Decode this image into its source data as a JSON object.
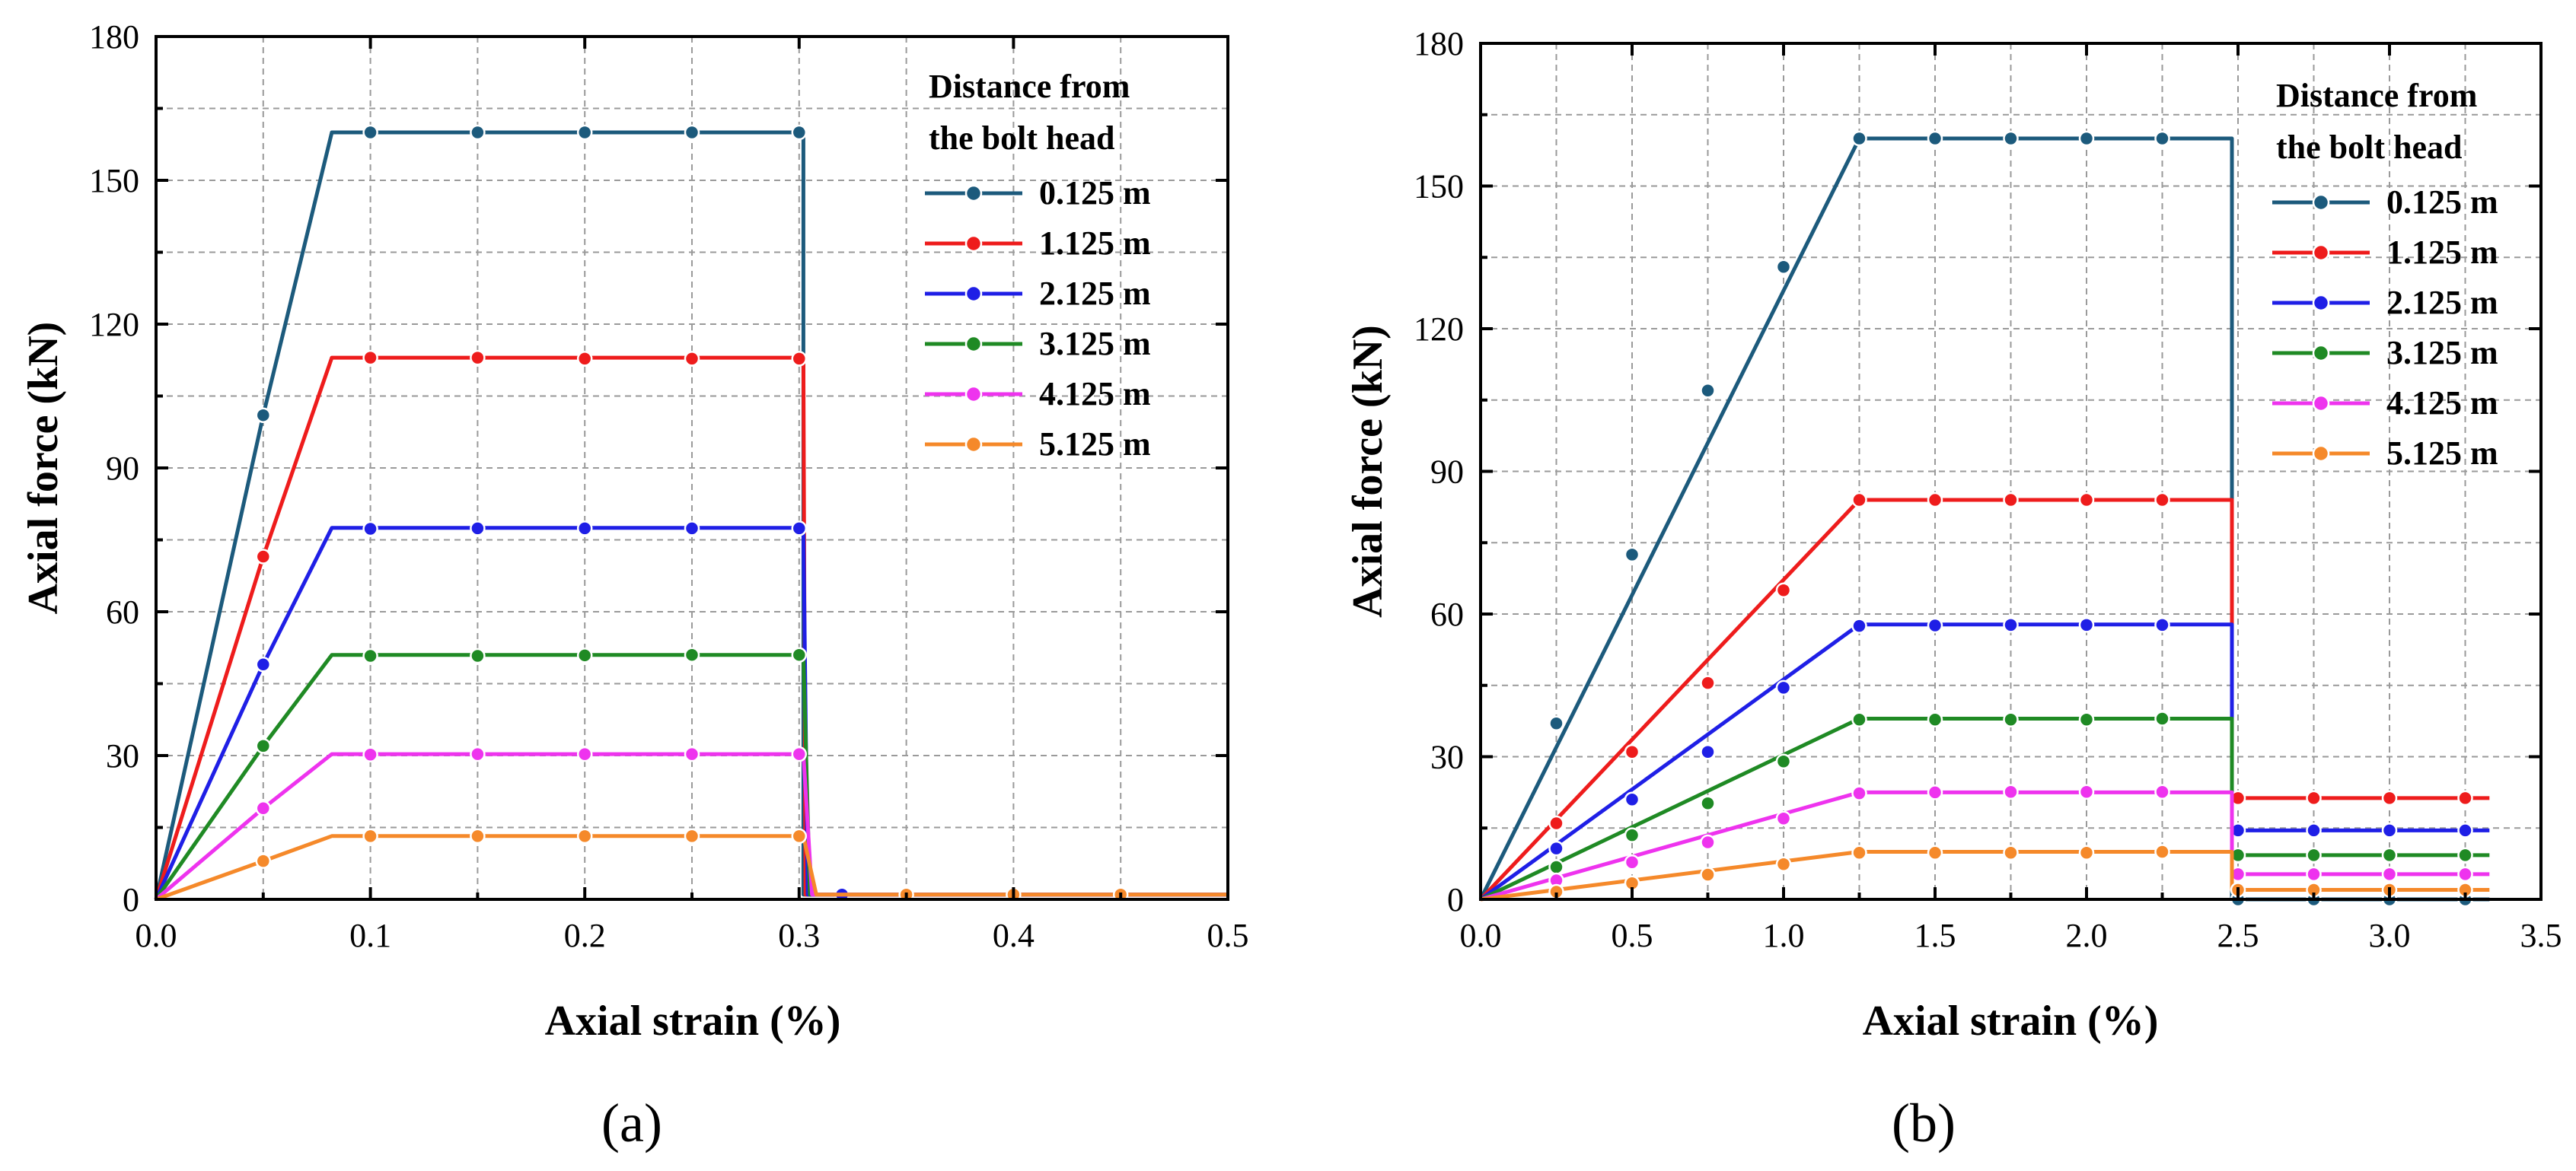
{
  "colors": {
    "s0": "#1c5a7c",
    "s1": "#ee1c1c",
    "s2": "#1f1fe6",
    "s3": "#1f8a24",
    "s4": "#ee33ee",
    "s5": "#f5892a"
  },
  "chart_data": [
    {
      "type": "line",
      "panel_label": "(a)",
      "xlabel": "Axial strain (%)",
      "ylabel": "Axial force (kN)",
      "xlim": [
        0,
        0.5
      ],
      "ylim": [
        0,
        180
      ],
      "xticks": [
        0.0,
        0.1,
        0.2,
        0.3,
        0.4,
        0.5
      ],
      "xtick_labels": [
        "0.0",
        "0.1",
        "0.2",
        "0.3",
        "0.4",
        "0.5"
      ],
      "yticks": [
        0,
        30,
        60,
        90,
        120,
        150,
        180
      ],
      "ytick_labels": [
        "0",
        "30",
        "60",
        "90",
        "120",
        "150",
        "180"
      ],
      "grid": true,
      "legend": {
        "title_line1": "Distance from",
        "title_line2": "the bolt head",
        "placement": "top-right"
      },
      "series": [
        {
          "name": "0.125 m",
          "line": [
            [
              0,
              0
            ],
            [
              0.05,
              101
            ],
            [
              0.082,
              160
            ],
            [
              0.302,
              160
            ],
            [
              0.302,
              1
            ],
            [
              0.5,
              1
            ]
          ],
          "markers": [
            [
              0.05,
              101
            ],
            [
              0.1,
              160
            ],
            [
              0.15,
              160
            ],
            [
              0.2,
              160
            ],
            [
              0.25,
              160
            ],
            [
              0.3,
              160
            ],
            [
              0.35,
              1
            ],
            [
              0.4,
              1
            ],
            [
              0.45,
              1
            ]
          ]
        },
        {
          "name": "1.125 m",
          "line": [
            [
              0,
              0
            ],
            [
              0.05,
              71.5
            ],
            [
              0.082,
              113
            ],
            [
              0.302,
              113
            ],
            [
              0.303,
              1
            ],
            [
              0.5,
              1
            ]
          ],
          "markers": [
            [
              0.05,
              71.5
            ],
            [
              0.1,
              113
            ],
            [
              0.15,
              113
            ],
            [
              0.2,
              112.8
            ],
            [
              0.25,
              112.8
            ],
            [
              0.3,
              112.8
            ],
            [
              0.35,
              1
            ],
            [
              0.4,
              1
            ],
            [
              0.45,
              1
            ]
          ]
        },
        {
          "name": "2.125 m",
          "line": [
            [
              0,
              0
            ],
            [
              0.05,
              49
            ],
            [
              0.082,
              77.5
            ],
            [
              0.302,
              77.5
            ],
            [
              0.304,
              1
            ],
            [
              0.5,
              1
            ]
          ],
          "markers": [
            [
              0.05,
              49
            ],
            [
              0.1,
              77.3
            ],
            [
              0.15,
              77.4
            ],
            [
              0.2,
              77.4
            ],
            [
              0.25,
              77.4
            ],
            [
              0.3,
              77.4
            ],
            [
              0.32,
              1
            ],
            [
              0.35,
              1
            ],
            [
              0.4,
              1
            ],
            [
              0.45,
              1
            ]
          ]
        },
        {
          "name": "3.125 m",
          "line": [
            [
              0,
              0
            ],
            [
              0.05,
              32
            ],
            [
              0.082,
              51
            ],
            [
              0.302,
              51
            ],
            [
              0.305,
              1
            ],
            [
              0.5,
              1
            ]
          ],
          "markers": [
            [
              0.05,
              32
            ],
            [
              0.1,
              50.8
            ],
            [
              0.15,
              50.8
            ],
            [
              0.2,
              50.9
            ],
            [
              0.25,
              51
            ],
            [
              0.3,
              51
            ],
            [
              0.35,
              1
            ],
            [
              0.4,
              1
            ],
            [
              0.45,
              1
            ]
          ]
        },
        {
          "name": "4.125 m",
          "line": [
            [
              0,
              0
            ],
            [
              0.05,
              19
            ],
            [
              0.082,
              30.3
            ],
            [
              0.302,
              30.3
            ],
            [
              0.306,
              1
            ],
            [
              0.5,
              1
            ]
          ],
          "markers": [
            [
              0.05,
              19
            ],
            [
              0.1,
              30.2
            ],
            [
              0.15,
              30.3
            ],
            [
              0.2,
              30.3
            ],
            [
              0.25,
              30.3
            ],
            [
              0.3,
              30.3
            ],
            [
              0.35,
              1
            ],
            [
              0.4,
              1
            ],
            [
              0.45,
              1
            ]
          ]
        },
        {
          "name": "5.125 m",
          "line": [
            [
              0,
              0
            ],
            [
              0.05,
              8
            ],
            [
              0.082,
              13.2
            ],
            [
              0.302,
              13.2
            ],
            [
              0.308,
              1
            ],
            [
              0.5,
              1
            ]
          ],
          "markers": [
            [
              0.05,
              8
            ],
            [
              0.1,
              13.2
            ],
            [
              0.15,
              13.2
            ],
            [
              0.2,
              13.2
            ],
            [
              0.25,
              13.2
            ],
            [
              0.3,
              13.2
            ],
            [
              0.35,
              1
            ],
            [
              0.4,
              1
            ],
            [
              0.45,
              1
            ]
          ]
        }
      ]
    },
    {
      "type": "line",
      "panel_label": "(b)",
      "xlabel": "Axial strain (%)",
      "ylabel": "Axial force (kN)",
      "xlim": [
        0,
        3.5
      ],
      "ylim": [
        0,
        180
      ],
      "xticks": [
        0.0,
        0.5,
        1.0,
        1.5,
        2.0,
        2.5,
        3.0,
        3.5
      ],
      "xtick_labels": [
        "0.0",
        "0.5",
        "1.0",
        "1.5",
        "2.0",
        "2.5",
        "3.0",
        "3.5"
      ],
      "yticks": [
        0,
        30,
        60,
        90,
        120,
        150,
        180
      ],
      "ytick_labels": [
        "0",
        "30",
        "60",
        "90",
        "120",
        "150",
        "180"
      ],
      "grid": true,
      "legend": {
        "title_line1": "Distance from",
        "title_line2": "the bolt head",
        "placement": "top-right"
      },
      "series": [
        {
          "name": "0.125 m",
          "line": [
            [
              0,
              0
            ],
            [
              1.25,
              160
            ],
            [
              2.48,
              160
            ],
            [
              2.48,
              0
            ],
            [
              3.33,
              0
            ]
          ],
          "markers": [
            [
              0.25,
              37
            ],
            [
              0.5,
              72.5
            ],
            [
              0.75,
              107
            ],
            [
              1.0,
              133
            ],
            [
              1.25,
              160
            ],
            [
              1.5,
              160
            ],
            [
              1.75,
              160
            ],
            [
              2.0,
              160
            ],
            [
              2.25,
              160
            ],
            [
              2.5,
              0
            ],
            [
              2.75,
              0
            ],
            [
              3.0,
              0
            ],
            [
              3.25,
              0
            ]
          ]
        },
        {
          "name": "1.125 m",
          "line": [
            [
              0,
              0
            ],
            [
              1.25,
              84
            ],
            [
              2.48,
              84
            ],
            [
              2.48,
              21.3
            ],
            [
              3.33,
              21.3
            ]
          ],
          "markers": [
            [
              0.25,
              16
            ],
            [
              0.5,
              31
            ],
            [
              0.75,
              45.5
            ],
            [
              1.0,
              65
            ],
            [
              1.25,
              84
            ],
            [
              1.5,
              84
            ],
            [
              1.75,
              84
            ],
            [
              2.0,
              84
            ],
            [
              2.25,
              84
            ],
            [
              2.5,
              21.3
            ],
            [
              2.75,
              21.3
            ],
            [
              3.0,
              21.3
            ],
            [
              3.25,
              21.3
            ]
          ]
        },
        {
          "name": "2.125 m",
          "line": [
            [
              0,
              0
            ],
            [
              1.25,
              57.8
            ],
            [
              2.48,
              57.8
            ],
            [
              2.48,
              14.5
            ],
            [
              3.33,
              14.5
            ]
          ],
          "markers": [
            [
              0.25,
              10.7
            ],
            [
              0.5,
              21
            ],
            [
              0.75,
              31
            ],
            [
              1.0,
              44.5
            ],
            [
              1.25,
              57.5
            ],
            [
              1.5,
              57.6
            ],
            [
              1.75,
              57.7
            ],
            [
              2.0,
              57.7
            ],
            [
              2.25,
              57.7
            ],
            [
              2.5,
              14.5
            ],
            [
              2.75,
              14.5
            ],
            [
              3.0,
              14.5
            ],
            [
              3.25,
              14.5
            ]
          ]
        },
        {
          "name": "3.125 m",
          "line": [
            [
              0,
              0
            ],
            [
              1.25,
              38
            ],
            [
              2.48,
              38
            ],
            [
              2.48,
              9.3
            ],
            [
              3.33,
              9.3
            ]
          ],
          "markers": [
            [
              0.25,
              6.8
            ],
            [
              0.5,
              13.5
            ],
            [
              0.75,
              20.2
            ],
            [
              1.0,
              29
            ],
            [
              1.25,
              37.8
            ],
            [
              1.5,
              37.8
            ],
            [
              1.75,
              37.8
            ],
            [
              2.0,
              37.8
            ],
            [
              2.25,
              38
            ],
            [
              2.5,
              9.3
            ],
            [
              2.75,
              9.3
            ],
            [
              3.0,
              9.3
            ],
            [
              3.25,
              9.3
            ]
          ]
        },
        {
          "name": "4.125 m",
          "line": [
            [
              0,
              0
            ],
            [
              1.25,
              22.5
            ],
            [
              2.48,
              22.5
            ],
            [
              2.48,
              5.3
            ],
            [
              3.33,
              5.3
            ]
          ],
          "markers": [
            [
              0.25,
              4
            ],
            [
              0.5,
              7.8
            ],
            [
              0.75,
              12
            ],
            [
              1.0,
              17
            ],
            [
              1.25,
              22.3
            ],
            [
              1.5,
              22.5
            ],
            [
              1.75,
              22.6
            ],
            [
              2.0,
              22.6
            ],
            [
              2.25,
              22.6
            ],
            [
              2.5,
              5.3
            ],
            [
              2.75,
              5.3
            ],
            [
              3.0,
              5.3
            ],
            [
              3.25,
              5.3
            ]
          ]
        },
        {
          "name": "5.125 m",
          "line": [
            [
              0,
              0
            ],
            [
              1.25,
              10
            ],
            [
              2.48,
              10
            ],
            [
              2.48,
              2
            ],
            [
              3.33,
              2
            ]
          ],
          "markers": [
            [
              0.25,
              1.6
            ],
            [
              0.5,
              3.4
            ],
            [
              0.75,
              5.2
            ],
            [
              1.0,
              7.4
            ],
            [
              1.25,
              9.8
            ],
            [
              1.5,
              9.8
            ],
            [
              1.75,
              9.8
            ],
            [
              2.0,
              9.8
            ],
            [
              2.25,
              10
            ],
            [
              2.5,
              2
            ],
            [
              2.75,
              2
            ],
            [
              3.0,
              2
            ],
            [
              3.25,
              2
            ]
          ]
        }
      ]
    }
  ]
}
